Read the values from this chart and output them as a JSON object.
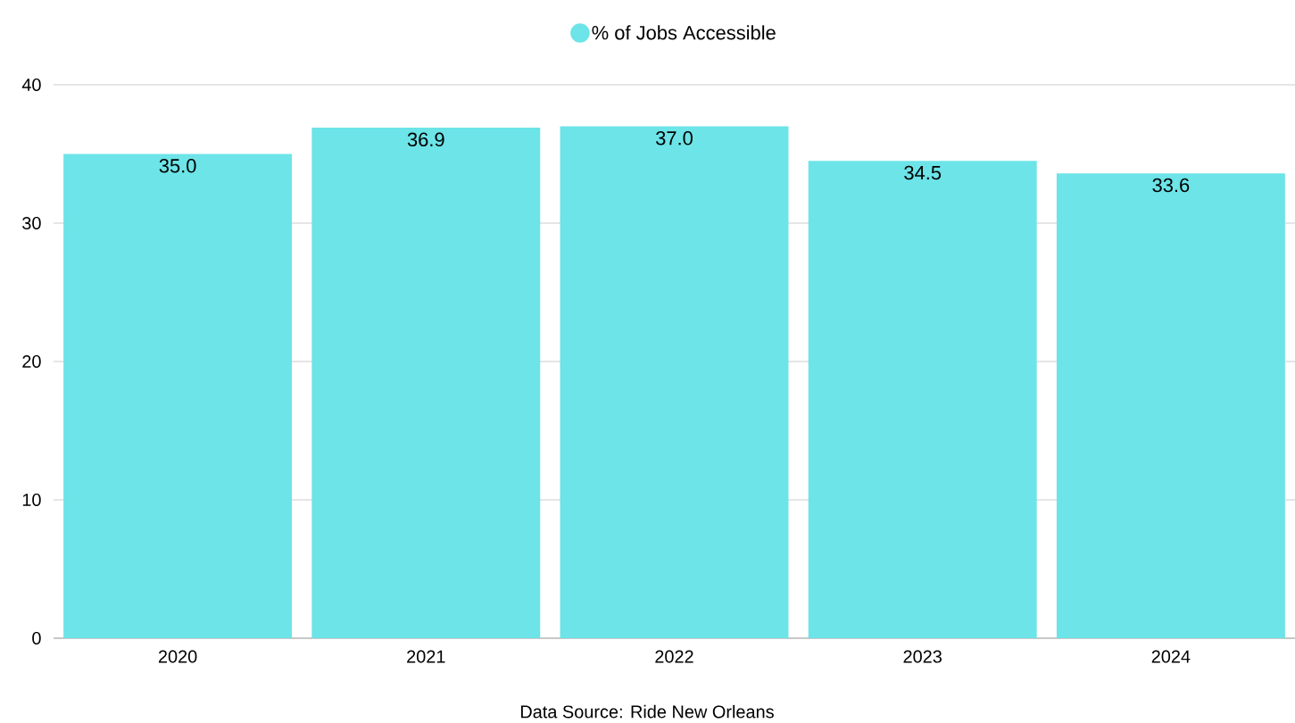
{
  "chart_data": {
    "type": "bar",
    "categories": [
      "2020",
      "2021",
      "2022",
      "2023",
      "2024"
    ],
    "series": [
      {
        "name": "% of Jobs Accessible",
        "color": "#6ce4e8",
        "values": [
          35.0,
          36.9,
          37.0,
          34.5,
          33.6
        ],
        "value_labels": [
          "35.0",
          "36.9",
          "37.0",
          "34.5",
          "33.6"
        ]
      }
    ],
    "ylim": [
      0,
      40
    ],
    "yticks": [
      0,
      10,
      20,
      30,
      40
    ],
    "grid": "y",
    "legend": "top",
    "annotations": [
      "Data Source: Ride New Orleans"
    ]
  }
}
